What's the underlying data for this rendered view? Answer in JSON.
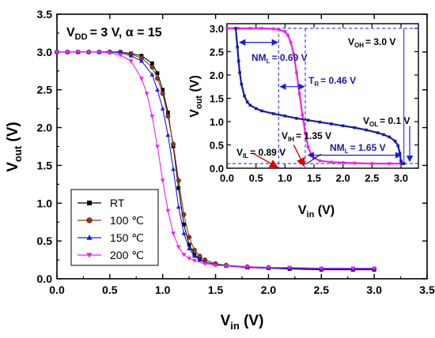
{
  "chart_data": [
    {
      "type": "line",
      "xlabel": "V",
      "xlabel_sub": "in",
      "xlabel_unit": " (V)",
      "ylabel": "V",
      "ylabel_sub": "out",
      "ylabel_unit": " (V)",
      "xlim": [
        0,
        3.5
      ],
      "ylim": [
        0,
        3.5
      ],
      "xticks": [
        "0.0",
        "0.5",
        "1.0",
        "1.5",
        "2.0",
        "2.5",
        "3.0",
        "3.5"
      ],
      "yticks": [
        "0.0",
        "0.5",
        "1.0",
        "1.5",
        "2.0",
        "2.5",
        "3.0",
        "3.5"
      ],
      "condition": {
        "part1": "V",
        "sub": "DD",
        "part2": "= 3 V, α = 15"
      },
      "legend_position": "bottom-left",
      "series": [
        {
          "name": "RT",
          "marker": "square",
          "color": "#000000",
          "x": [
            0,
            0.1,
            0.2,
            0.3,
            0.4,
            0.5,
            0.6,
            0.7,
            0.8,
            0.9,
            0.95,
            1.0,
            1.05,
            1.1,
            1.15,
            1.2,
            1.25,
            1.3,
            1.35,
            1.4,
            1.5,
            1.6,
            1.8,
            2.0,
            2.2,
            2.5,
            2.8,
            3.0
          ],
          "y": [
            3.0,
            3.0,
            3.0,
            3.0,
            3.0,
            3.0,
            3.0,
            2.98,
            2.95,
            2.85,
            2.72,
            2.5,
            2.2,
            1.75,
            1.2,
            0.72,
            0.45,
            0.32,
            0.26,
            0.22,
            0.19,
            0.17,
            0.15,
            0.14,
            0.13,
            0.12,
            0.12,
            0.12
          ]
        },
        {
          "name": "100 ℃",
          "marker": "circle",
          "color": "#8b3a1a",
          "x": [
            0,
            0.1,
            0.2,
            0.3,
            0.4,
            0.5,
            0.6,
            0.7,
            0.8,
            0.9,
            0.95,
            1.0,
            1.05,
            1.1,
            1.15,
            1.2,
            1.25,
            1.3,
            1.35,
            1.4,
            1.5,
            1.6,
            1.8,
            2.0,
            2.2,
            2.5,
            2.8,
            3.0
          ],
          "y": [
            3.0,
            3.0,
            3.0,
            3.0,
            3.0,
            3.0,
            3.0,
            2.97,
            2.92,
            2.8,
            2.65,
            2.45,
            2.15,
            1.78,
            1.3,
            0.85,
            0.55,
            0.38,
            0.3,
            0.25,
            0.2,
            0.18,
            0.16,
            0.15,
            0.14,
            0.13,
            0.13,
            0.13
          ]
        },
        {
          "name": "150 ℃",
          "marker": "triangle-up",
          "color": "#1a1aee",
          "x": [
            0,
            0.1,
            0.2,
            0.3,
            0.4,
            0.5,
            0.6,
            0.7,
            0.8,
            0.9,
            0.95,
            1.0,
            1.05,
            1.1,
            1.15,
            1.2,
            1.25,
            1.3,
            1.35,
            1.4,
            1.5,
            1.6,
            1.8,
            2.0,
            2.2,
            2.5,
            2.8,
            3.0
          ],
          "y": [
            3.0,
            3.0,
            3.0,
            3.0,
            3.0,
            3.0,
            2.99,
            2.95,
            2.88,
            2.7,
            2.5,
            2.25,
            1.9,
            1.45,
            0.95,
            0.6,
            0.4,
            0.3,
            0.25,
            0.22,
            0.19,
            0.17,
            0.15,
            0.14,
            0.14,
            0.13,
            0.13,
            0.13
          ]
        },
        {
          "name": "200 ℃",
          "marker": "triangle-down",
          "color": "#ee22ee",
          "x": [
            0,
            0.1,
            0.2,
            0.3,
            0.4,
            0.5,
            0.6,
            0.7,
            0.8,
            0.85,
            0.9,
            0.95,
            1.0,
            1.05,
            1.1,
            1.15,
            1.2,
            1.25,
            1.3,
            1.4,
            1.5,
            1.6,
            1.8,
            2.0,
            2.2,
            2.5,
            2.8,
            3.0
          ],
          "y": [
            3.0,
            3.0,
            3.0,
            3.0,
            3.0,
            2.99,
            2.96,
            2.88,
            2.65,
            2.45,
            2.15,
            1.75,
            1.3,
            0.9,
            0.6,
            0.42,
            0.32,
            0.27,
            0.24,
            0.2,
            0.18,
            0.17,
            0.16,
            0.15,
            0.15,
            0.14,
            0.14,
            0.14
          ]
        }
      ]
    },
    {
      "type": "line",
      "position": "inset-top-right",
      "xlabel": "V",
      "xlabel_sub": "in",
      "xlabel_unit": " (V)",
      "ylabel": "V",
      "ylabel_sub": "out",
      "ylabel_unit": " (V)",
      "xlim": [
        0,
        3.3
      ],
      "ylim": [
        0,
        3.1
      ],
      "xticks": [
        "0.0",
        "0.5",
        "1.0",
        "1.5",
        "2.0",
        "2.5",
        "3.0"
      ],
      "yticks": [
        "0.0",
        "0.5",
        "1.0",
        "1.5",
        "2.0",
        "2.5",
        "3.0"
      ],
      "series": [
        {
          "name": "",
          "marker": "square",
          "color": "#ee22ee",
          "x": [
            0.0,
            0.2,
            0.4,
            0.6,
            0.8,
            0.9,
            1.0,
            1.05,
            1.1,
            1.15,
            1.2,
            1.25,
            1.3,
            1.35,
            1.4,
            1.45,
            1.5,
            1.6,
            1.8,
            2.0,
            2.2,
            2.5,
            2.8,
            3.0
          ],
          "y": [
            3.0,
            3.0,
            3.0,
            3.0,
            2.99,
            2.97,
            2.93,
            2.85,
            2.7,
            2.45,
            2.05,
            1.6,
            1.15,
            0.75,
            0.45,
            0.3,
            0.22,
            0.16,
            0.13,
            0.12,
            0.11,
            0.1,
            0.1,
            0.1
          ]
        },
        {
          "name": "",
          "marker": "square",
          "color": "#1a1aa6",
          "x": [
            0.15,
            0.18,
            0.2,
            0.22,
            0.25,
            0.3,
            0.35,
            0.4,
            0.5,
            0.6,
            0.8,
            1.0,
            1.2,
            1.4,
            1.6,
            1.8,
            2.0,
            2.2,
            2.4,
            2.6,
            2.7,
            2.8,
            2.9,
            2.95,
            2.98,
            3.0,
            3.02,
            3.05
          ],
          "y": [
            3.0,
            2.6,
            2.3,
            2.05,
            1.8,
            1.55,
            1.42,
            1.35,
            1.28,
            1.23,
            1.17,
            1.12,
            1.07,
            1.03,
            0.99,
            0.95,
            0.91,
            0.87,
            0.82,
            0.76,
            0.72,
            0.67,
            0.58,
            0.48,
            0.32,
            0.15,
            0.1,
            0.1
          ]
        }
      ],
      "annotations": {
        "voh": {
          "label": "V",
          "sub": "OH",
          "value": "= 3.0 V"
        },
        "vol": {
          "label": "V",
          "sub": "OL",
          "value": "= 0.1 V"
        },
        "nml_top": {
          "label": "NM",
          "sub": "L",
          "value": "= 0.69 V"
        },
        "tr": {
          "label": "T",
          "sub": "R",
          "value": "= 0.46 V"
        },
        "vih": {
          "label": "V",
          "sub": "IH",
          "value": "= 1.35 V"
        },
        "vil": {
          "label": "V",
          "sub": "IL",
          "value": "= 0.89 V"
        },
        "nml_bottom": {
          "label": "NM",
          "sub": "L",
          "value": "= 1.65 V"
        }
      }
    }
  ]
}
